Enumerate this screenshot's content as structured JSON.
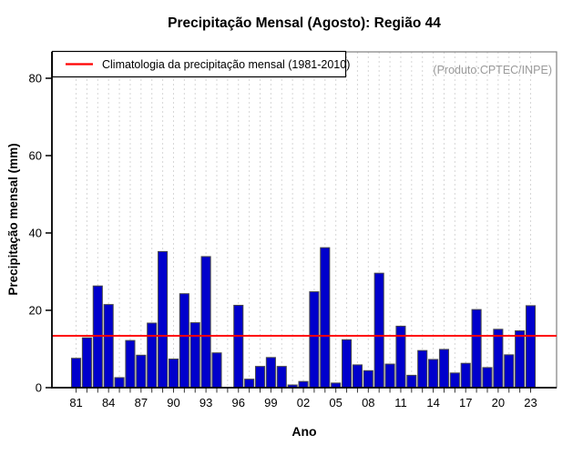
{
  "window": {
    "title": "Precipitação Mensal (Agosto): Região 44"
  },
  "watermark": "(Produto:CPTEC/INPE)",
  "legend": {
    "label": "Climatologia da precipitação mensal (1981-2010)"
  },
  "colors": {
    "bar_fill": "#0000cc",
    "bar_border": "#4a4a4a",
    "climatology_line": "#ff0000",
    "grid": "#d6d6d6",
    "box_border": "#7f7f7f",
    "axis": "#000000",
    "watermark": "#9a9a9a"
  },
  "chart_data": {
    "type": "bar",
    "title": "Precipitação Mensal (Agosto): Região 44",
    "xlabel": "Ano",
    "ylabel": "Precipitação mensal (mm)",
    "ylim": [
      0,
      86.8
    ],
    "yticks": [
      0,
      20,
      40,
      60,
      80
    ],
    "x_tick_labels_shown": [
      "81",
      "84",
      "87",
      "90",
      "93",
      "96",
      "99",
      "02",
      "05",
      "08",
      "11",
      "14",
      "17",
      "20",
      "23"
    ],
    "x_label_every": 3,
    "grid": "vertical-dashed",
    "legend_position": "top-left",
    "annotation": "(Produto:CPTEC/INPE)",
    "climatology": {
      "label": "Climatologia da precipitação mensal (1981-2010)",
      "value": 13.4,
      "color": "#ff0000"
    },
    "years": [
      1981,
      1982,
      1983,
      1984,
      1985,
      1986,
      1987,
      1988,
      1989,
      1990,
      1991,
      1992,
      1993,
      1994,
      1995,
      1996,
      1997,
      1998,
      1999,
      2000,
      2001,
      2002,
      2003,
      2004,
      2005,
      2006,
      2007,
      2008,
      2009,
      2010,
      2011,
      2012,
      2013,
      2014,
      2015,
      2016,
      2017,
      2018,
      2019,
      2020,
      2021,
      2022,
      2023
    ],
    "values": [
      7.6,
      12.9,
      26.3,
      21.5,
      2.6,
      12.2,
      8.4,
      16.7,
      35.2,
      7.4,
      24.3,
      16.8,
      33.9,
      9.0,
      0.0,
      21.3,
      2.2,
      5.5,
      7.8,
      5.5,
      0.7,
      1.6,
      24.8,
      36.2,
      1.2,
      12.4,
      5.9,
      4.4,
      29.6,
      6.1,
      15.9,
      3.2,
      9.6,
      7.3,
      9.9,
      3.8,
      6.3,
      20.2,
      5.2,
      15.1,
      8.5,
      14.7,
      21.2
    ]
  }
}
